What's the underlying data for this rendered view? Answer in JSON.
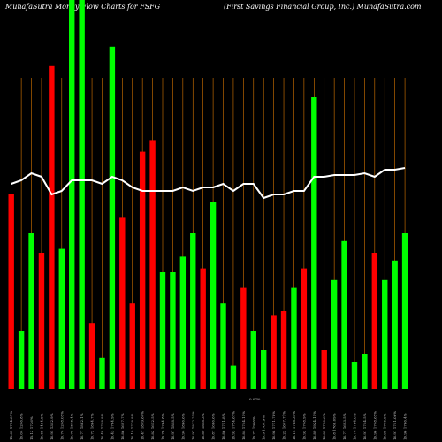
{
  "header": {
    "left": "MunafaSutra  Money Flow  Charts for FSFG",
    "right": "(First Savings Financial Group,  Inc.) MunafaSutra.com"
  },
  "colors": {
    "background": "#000000",
    "up": "#00ff00",
    "down": "#ff0000",
    "gridline": "#ff8c00",
    "line": "#ffffff"
  },
  "chart_data": {
    "type": "bar",
    "ylim": [
      0,
      100
    ],
    "values": [
      50,
      15,
      40,
      35,
      83,
      36,
      100,
      100,
      17,
      8,
      88,
      44,
      22,
      61,
      64,
      30,
      30,
      34,
      40,
      31,
      48,
      22,
      6,
      26,
      15,
      10,
      19,
      20,
      26,
      31,
      75,
      10,
      28,
      38,
      7,
      9,
      35,
      28,
      33,
      40
    ],
    "directions": [
      "down",
      "up",
      "up",
      "down",
      "down",
      "up",
      "up",
      "up",
      "down",
      "up",
      "up",
      "down",
      "down",
      "down",
      "down",
      "up",
      "up",
      "up",
      "up",
      "down",
      "up",
      "up",
      "up",
      "down",
      "up",
      "up",
      "down",
      "down",
      "up",
      "down",
      "up",
      "down",
      "up",
      "up",
      "up",
      "up",
      "down",
      "up",
      "up",
      "up"
    ],
    "line_values": [
      58,
      59,
      61,
      60,
      55,
      56,
      59,
      59,
      59,
      58,
      60,
      59,
      57,
      56,
      56,
      56,
      56,
      57,
      56,
      57,
      57,
      58,
      56,
      58,
      58,
      54,
      55,
      55,
      56,
      56,
      60,
      60,
      60.5,
      60.5,
      60.5,
      61,
      60,
      62,
      62,
      62.5
    ],
    "categories": [
      "15.69 1754.07%",
      "16.04 1246.8%",
      "15.12 1736%",
      "16.69 1464.9%",
      "16.95 1342.9%",
      "16.74 1248.05%",
      "16.76 1848.4%",
      "16.77 1802.1%",
      "16.72 1864.7%",
      "16.48 1748.8%",
      "16.43 1704.9%",
      "16.86 1697.7%",
      "16.19 1728.8%",
      "16.47 1849.64%",
      "16.82 1652.5%",
      "16.78 1264.8%",
      "16.97 1848.5%",
      "16.94 1866.6%",
      "16.97 1832.25%",
      "16.89 1848.3%",
      "16.87 1686.6%",
      "16.86 1751.8%",
      "16.93 1754.67%",
      "16.84 1744.15%",
      "16.77 1946%",
      "16.9 1764.9%",
      "16.98 1711.78%",
      "16.22 1647.71%",
      "16.14 1788.35%",
      "16.92 1748.9%",
      "16.89 1924.15%",
      "16.89 1790.6%",
      "16.8 1768.09%",
      "16.77 1693.5%",
      "16.74 1764.8%",
      "16.91 1744.5%",
      "16.96 1748.65%",
      "16.95 1776.9%",
      "16.91 1741.06%",
      "16.96 1766.4%"
    ],
    "annotation": "0.07%"
  }
}
